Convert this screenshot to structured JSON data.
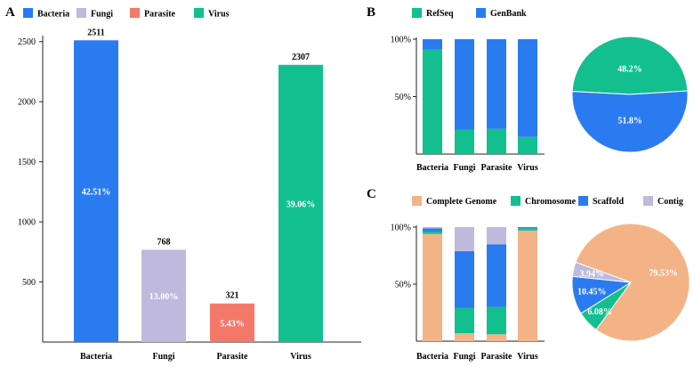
{
  "colors": {
    "bacteria": "#2b7bf0",
    "fungi": "#bfb9dd",
    "parasite": "#f3786a",
    "virus": "#13bf8f",
    "refseq": "#13bf8f",
    "genbank": "#2b7bf0",
    "complete_genome": "#f4b386",
    "chromosome": "#13bf8f",
    "scaffold": "#2b7bf0",
    "contig": "#bfb9dd"
  },
  "chart_data": [
    {
      "panel": "A",
      "type": "bar",
      "legend": [
        "Bacteria",
        "Fungi",
        "Parasite",
        "Virus"
      ],
      "legend_placement": "top-left",
      "categories": [
        "Bacteria",
        "Fungi",
        "Parasite",
        "Virus"
      ],
      "values": [
        2511,
        768,
        321,
        2307
      ],
      "value_labels": [
        "2511",
        "768",
        "321",
        "2307"
      ],
      "percent_labels": [
        "42.51%",
        "13.00%",
        "5.43%",
        "39.06%"
      ],
      "yticks": [
        500,
        1000,
        1500,
        2000,
        2500
      ],
      "ylim": [
        0,
        2550
      ]
    },
    {
      "panel": "B",
      "type": "bar",
      "stacked": true,
      "legend": [
        "RefSeq",
        "GenBank"
      ],
      "legend_placement": "top-left",
      "categories": [
        "Bacteria",
        "Fungi",
        "Parasite",
        "Virus"
      ],
      "series": [
        {
          "name": "RefSeq",
          "values": [
            91,
            21,
            22,
            15
          ]
        },
        {
          "name": "GenBank",
          "values": [
            9,
            79,
            78,
            85
          ]
        }
      ],
      "yticks": [
        "50%",
        "100%"
      ],
      "ylim": [
        0,
        100
      ]
    },
    {
      "panel": "B",
      "type": "pie",
      "labels": [
        "RefSeq",
        "GenBank"
      ],
      "values": [
        48.2,
        51.8
      ],
      "value_labels": [
        "48.2%",
        "51.8%"
      ]
    },
    {
      "panel": "C",
      "type": "bar",
      "stacked": true,
      "legend": [
        "Complete Genome",
        "Chromosome",
        "Scaffold",
        "Contig"
      ],
      "legend_placement": "top-left",
      "categories": [
        "Bacteria",
        "Fungi",
        "Parasite",
        "Virus"
      ],
      "series": [
        {
          "name": "Complete Genome",
          "values": [
            94,
            7,
            6,
            97
          ]
        },
        {
          "name": "Chromosome",
          "values": [
            2,
            22,
            24,
            2
          ]
        },
        {
          "name": "Scaffold",
          "values": [
            3,
            50,
            55,
            1
          ]
        },
        {
          "name": "Contig",
          "values": [
            1,
            21,
            15,
            0
          ]
        }
      ],
      "yticks": [
        "50%",
        "100%"
      ],
      "ylim": [
        0,
        100
      ]
    },
    {
      "panel": "C",
      "type": "pie",
      "labels": [
        "Complete Genome",
        "Chromosome",
        "Scaffold",
        "Contig"
      ],
      "values": [
        79.53,
        6.08,
        10.45,
        3.94
      ],
      "value_labels": [
        "79.53%",
        "6.08%",
        "10.45%",
        "3.94%"
      ]
    }
  ]
}
